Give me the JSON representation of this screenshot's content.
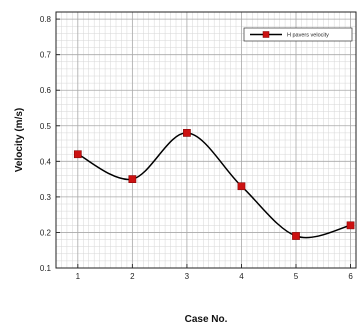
{
  "chart_data": {
    "type": "line",
    "x": [
      1,
      2,
      3,
      4,
      5,
      6
    ],
    "series": [
      {
        "name": "H pavers velocity",
        "values": [
          0.42,
          0.35,
          0.48,
          0.33,
          0.19,
          0.22
        ],
        "color": "#000000",
        "marker_color": "#cc1111",
        "smooth": true
      }
    ],
    "xlabel": "Case No.",
    "ylabel": "Velocity (m/s)",
    "xlim": [
      0.6,
      6.1
    ],
    "ylim": [
      0.1,
      0.82
    ],
    "xticks": [
      1,
      2,
      3,
      4,
      5,
      6
    ],
    "xtick_labels": [
      "1",
      "2",
      "3",
      "4",
      "5",
      "6"
    ],
    "yticks": [
      0.1,
      0.2,
      0.3,
      0.4,
      0.5,
      0.6,
      0.7,
      0.8
    ],
    "ytick_labels": [
      "0.1",
      "0.2",
      "0.3",
      "0.4",
      "0.5",
      "0.6",
      "0.7",
      "0.8"
    ],
    "grid": true,
    "legend_position": "top-right"
  }
}
